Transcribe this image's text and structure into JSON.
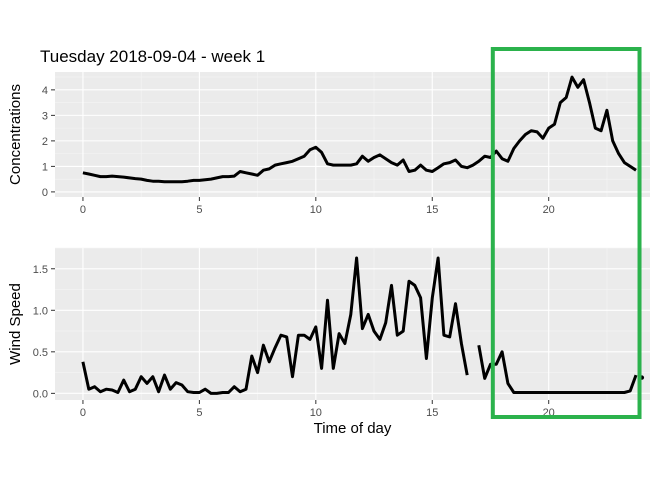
{
  "chart_data": [
    {
      "type": "line",
      "title": "Tuesday 2018-09-04 - week 1",
      "ylabel": "Concentrations",
      "xlabel": "",
      "xlim": [
        -1.2,
        24.35
      ],
      "ylim": [
        -0.2,
        4.7
      ],
      "xticks": [
        0,
        5,
        10,
        15,
        20
      ],
      "yticks": [
        0,
        1,
        2,
        3,
        4
      ],
      "xtick_labels": [
        "0",
        "5",
        "10",
        "15",
        "20"
      ],
      "ytick_labels": [
        "0",
        "1",
        "2",
        "3",
        "4"
      ],
      "grid": true,
      "series_color": "#000000",
      "x": [
        0,
        0.25,
        0.5,
        0.75,
        1,
        1.25,
        1.5,
        1.75,
        2,
        2.25,
        2.5,
        2.75,
        3,
        3.25,
        3.5,
        3.75,
        4,
        4.25,
        4.5,
        4.75,
        5,
        5.25,
        5.5,
        5.75,
        6,
        6.25,
        6.5,
        6.75,
        7,
        7.25,
        7.5,
        7.75,
        8,
        8.25,
        8.5,
        8.75,
        9,
        9.25,
        9.5,
        9.75,
        10,
        10.25,
        10.5,
        10.75,
        11,
        11.25,
        11.5,
        11.75,
        12,
        12.25,
        12.5,
        12.75,
        13,
        13.25,
        13.5,
        13.75,
        14,
        14.25,
        14.5,
        14.75,
        15,
        15.25,
        15.5,
        15.75,
        16,
        16.25,
        16.5,
        16.75,
        17,
        17.25,
        17.5,
        17.75,
        18,
        18.25,
        18.5,
        18.75,
        19,
        19.25,
        19.5,
        19.75,
        20,
        20.25,
        20.5,
        20.75,
        21,
        21.25,
        21.5,
        21.75,
        22,
        22.25,
        22.5,
        22.75,
        23,
        23.25,
        23.5,
        23.75
      ],
      "y": [
        0.75,
        0.7,
        0.65,
        0.6,
        0.6,
        0.62,
        0.6,
        0.58,
        0.55,
        0.52,
        0.5,
        0.45,
        0.42,
        0.42,
        0.4,
        0.4,
        0.4,
        0.4,
        0.42,
        0.45,
        0.45,
        0.48,
        0.5,
        0.55,
        0.6,
        0.6,
        0.62,
        0.8,
        0.75,
        0.7,
        0.65,
        0.85,
        0.9,
        1.05,
        1.1,
        1.15,
        1.2,
        1.3,
        1.4,
        1.65,
        1.75,
        1.55,
        1.1,
        1.05,
        1.05,
        1.05,
        1.05,
        1.1,
        1.4,
        1.2,
        1.35,
        1.45,
        1.3,
        1.15,
        1.05,
        1.25,
        0.8,
        0.85,
        1.05,
        0.85,
        0.8,
        0.95,
        1.1,
        1.15,
        1.25,
        1.0,
        0.95,
        1.05,
        1.2,
        1.4,
        1.35,
        1.6,
        1.3,
        1.2,
        1.7,
        2.0,
        2.25,
        2.4,
        2.35,
        2.1,
        2.5,
        2.65,
        3.5,
        3.7,
        4.5,
        4.1,
        4.4,
        3.5,
        2.5,
        2.4,
        3.2,
        2.0,
        1.5,
        1.15,
        1.0,
        0.85
      ]
    },
    {
      "type": "line",
      "title": "",
      "ylabel": "Wind Speed",
      "xlabel": "Time of day",
      "xlim": [
        -1.2,
        24.35
      ],
      "ylim": [
        -0.08,
        1.75
      ],
      "xticks": [
        0,
        5,
        10,
        15,
        20
      ],
      "yticks": [
        0,
        0.5,
        1.0,
        1.5
      ],
      "xtick_labels": [
        "0",
        "5",
        "10",
        "15",
        "20"
      ],
      "ytick_labels": [
        "0.0",
        "0.5",
        "1.0",
        "1.5"
      ],
      "grid": true,
      "series_color": "#000000",
      "segments": [
        {
          "x": [
            0,
            0.25,
            0.5,
            0.75,
            1,
            1.25,
            1.5,
            1.75,
            2,
            2.25,
            2.5,
            2.75,
            3,
            3.25,
            3.5,
            3.75,
            4,
            4.25,
            4.5,
            4.75,
            5,
            5.25,
            5.5,
            5.75,
            6,
            6.25,
            6.5,
            6.75,
            7,
            7.25,
            7.5,
            7.75,
            8,
            8.25,
            8.5,
            8.75,
            9,
            9.25,
            9.5,
            9.75,
            10,
            10.25,
            10.5,
            10.75,
            11,
            11.25,
            11.5,
            11.75,
            12,
            12.25,
            12.5,
            12.75,
            13,
            13.25,
            13.5,
            13.75,
            14,
            14.25,
            14.5,
            14.75,
            15,
            15.25,
            15.5,
            15.75,
            16,
            16.25,
            16.5
          ],
          "y": [
            0.38,
            0.05,
            0.08,
            0.02,
            0.05,
            0.04,
            0.01,
            0.16,
            0.02,
            0.05,
            0.2,
            0.12,
            0.2,
            0.02,
            0.22,
            0.05,
            0.13,
            0.1,
            0.02,
            0.01,
            0.01,
            0.05,
            0.0,
            0.0,
            0.01,
            0.01,
            0.08,
            0.02,
            0.05,
            0.45,
            0.25,
            0.58,
            0.38,
            0.55,
            0.7,
            0.68,
            0.2,
            0.7,
            0.7,
            0.65,
            0.8,
            0.3,
            1.12,
            0.3,
            0.72,
            0.6,
            0.95,
            1.63,
            0.78,
            0.95,
            0.75,
            0.65,
            0.85,
            1.3,
            0.7,
            0.75,
            1.35,
            1.3,
            1.15,
            0.42,
            1.15,
            1.63,
            0.7,
            0.68,
            1.08,
            0.6,
            0.22
          ]
        },
        {
          "x": [
            17,
            17.25,
            17.5,
            17.75,
            18,
            18.25,
            18.5,
            18.75,
            19,
            19.25,
            19.5,
            19.75,
            20,
            20.25,
            20.5,
            20.75,
            21,
            21.25,
            21.5,
            21.75,
            22,
            22.25,
            22.5,
            22.75,
            23,
            23.25,
            23.5,
            23.75
          ],
          "y": [
            0.58,
            0.18,
            0.35,
            0.35,
            0.5,
            0.12,
            0.01,
            0.01,
            0.01,
            0.01,
            0.01,
            0.01,
            0.01,
            0.01,
            0.01,
            0.01,
            0.01,
            0.01,
            0.01,
            0.01,
            0.01,
            0.01,
            0.01,
            0.01,
            0.01,
            0.01,
            0.03,
            0.22
          ]
        }
      ],
      "extra_points": [
        {
          "x": 24.0,
          "y": 0.19
        }
      ]
    }
  ],
  "highlight": {
    "color": "#2bb24c",
    "x_start": 17.6,
    "x_end": 23.9
  }
}
